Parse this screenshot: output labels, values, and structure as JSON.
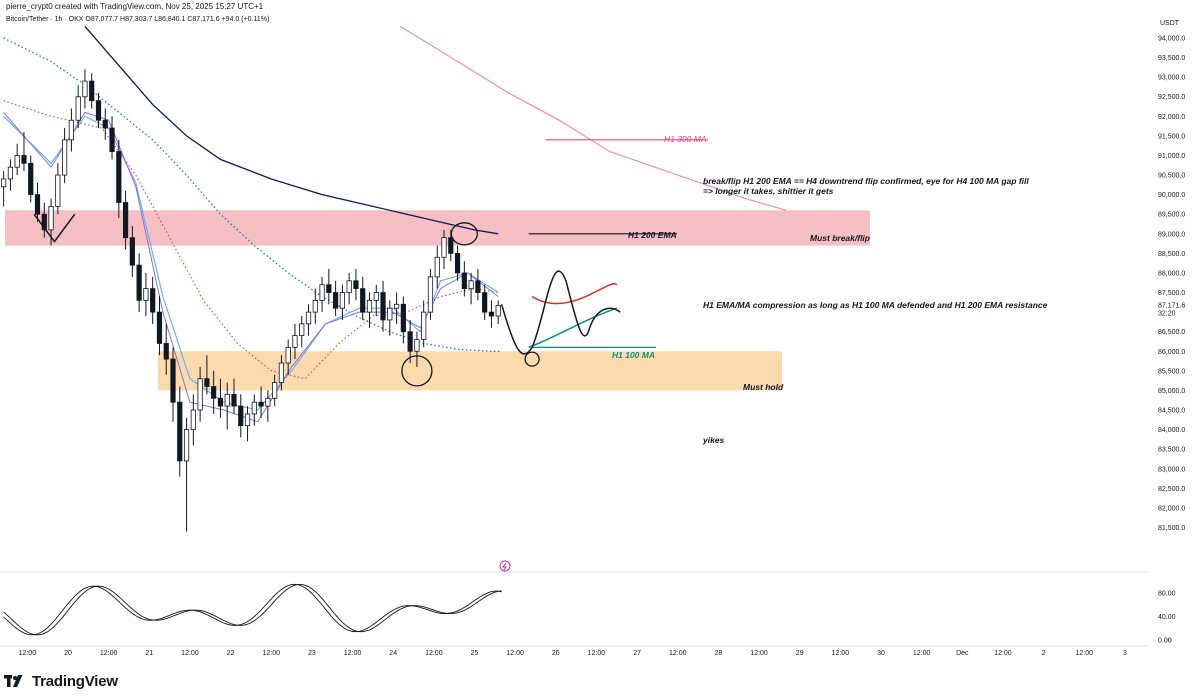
{
  "header": {
    "creator": "pierre_crypt0 created with TradingView.com, Nov 25, 2025 15:27 UTC+1",
    "symbol": "Bitcoin/Tether · 1h · OKX",
    "ohlc": "O87,077.7  H87,303.7  L86,840.1  C87,171.6  +94.0 (+0.11%)"
  },
  "currency": "USDT",
  "footer": {
    "brand": "TradingView"
  },
  "chart_data": {
    "type": "candlestick",
    "symbol": "Bitcoin/Tether",
    "timeframe": "1h",
    "exchange": "OKX",
    "price_axis": {
      "ticks": [
        94000,
        93500,
        93000,
        92500,
        92000,
        91500,
        91000,
        90500,
        90000,
        89500,
        89000,
        88500,
        88000,
        87500,
        87000,
        86500,
        86000,
        85500,
        85000,
        84500,
        84000,
        83500,
        83000,
        82500,
        82000,
        81500
      ],
      "tick_labels": [
        "94,000.0",
        "93,500.0",
        "93,000.0",
        "92,500.0",
        "92,000.0",
        "91,500.0",
        "91,000.0",
        "90,500.0",
        "90,000.0",
        "89,500.0",
        "89,000.0",
        "88,500.0",
        "88,000.0",
        "87,500.0",
        "87,000.0",
        "86,500.0",
        "86,000.0",
        "85,500.0",
        "85,000.0",
        "84,500.0",
        "84,000.0",
        "83,500.0",
        "83,000.0",
        "82,500.0",
        "82,000.0",
        "81,500.0"
      ],
      "range": [
        81300,
        94300
      ],
      "current_price": "87,171.6",
      "countdown": "32:20"
    },
    "time_axis": {
      "labels": [
        "12:00",
        "20",
        "12:00",
        "21",
        "12:00",
        "22",
        "12:00",
        "23",
        "12:00",
        "24",
        "12:00",
        "25",
        "12:00",
        "26",
        "12:00",
        "27",
        "12:00",
        "28",
        "12:00",
        "29",
        "12:00",
        "30",
        "12:00",
        "Dec",
        "12:00",
        "2",
        "12:00",
        "3"
      ],
      "label_hours": [
        -12,
        0,
        12,
        24,
        36,
        48,
        60,
        72,
        84,
        96,
        108,
        120,
        132,
        144,
        156,
        168,
        180,
        192,
        204,
        216,
        228,
        240,
        252,
        264,
        276,
        288,
        300,
        312
      ]
    },
    "candles": [
      [
        -19,
        90200,
        90600,
        89700,
        90400
      ],
      [
        -17,
        90400,
        90900,
        90100,
        90700
      ],
      [
        -15,
        90700,
        91300,
        90500,
        91000
      ],
      [
        -13,
        91000,
        91600,
        90600,
        90800
      ],
      [
        -11,
        90800,
        91000,
        89800,
        90000
      ],
      [
        -9,
        90000,
        90300,
        89300,
        89500
      ],
      [
        -7,
        89500,
        89800,
        88900,
        89100
      ],
      [
        -5,
        89100,
        89900,
        88700,
        89700
      ],
      [
        -3,
        89700,
        90800,
        89500,
        90500
      ],
      [
        -1,
        90500,
        91700,
        90300,
        91400
      ],
      [
        1,
        91400,
        92200,
        91100,
        91900
      ],
      [
        3,
        91900,
        92800,
        91700,
        92500
      ],
      [
        5,
        92500,
        93200,
        92200,
        92900
      ],
      [
        7,
        92900,
        93100,
        92200,
        92400
      ],
      [
        9,
        92400,
        92600,
        91700,
        91900
      ],
      [
        11,
        91900,
        92200,
        91400,
        91700
      ],
      [
        13,
        91700,
        92000,
        90900,
        91100
      ],
      [
        15,
        91100,
        91400,
        89400,
        89800
      ],
      [
        17,
        89800,
        90100,
        88600,
        88900
      ],
      [
        19,
        88900,
        89200,
        87900,
        88200
      ],
      [
        21,
        88200,
        88500,
        87000,
        87300
      ],
      [
        23,
        87300,
        88000,
        86900,
        87600
      ],
      [
        25,
        87600,
        87900,
        86700,
        87000
      ],
      [
        27,
        87000,
        87400,
        85900,
        86200
      ],
      [
        29,
        86200,
        86700,
        85400,
        85800
      ],
      [
        31,
        85800,
        86100,
        84200,
        84700
      ],
      [
        33,
        84700,
        85100,
        82800,
        83200
      ],
      [
        35,
        83200,
        84300,
        81400,
        84000
      ],
      [
        37,
        84000,
        84900,
        83600,
        84500
      ],
      [
        39,
        84500,
        85600,
        84200,
        85300
      ],
      [
        41,
        85300,
        85900,
        84900,
        85100
      ],
      [
        43,
        85100,
        85500,
        84400,
        84800
      ],
      [
        45,
        84800,
        85300,
        84300,
        84600
      ],
      [
        47,
        84600,
        85200,
        84000,
        84900
      ],
      [
        49,
        84900,
        85300,
        84400,
        84600
      ],
      [
        51,
        84600,
        84900,
        83800,
        84100
      ],
      [
        53,
        84100,
        84600,
        83700,
        84400
      ],
      [
        55,
        84400,
        84900,
        84100,
        84700
      ],
      [
        57,
        84700,
        85100,
        84300,
        84600
      ],
      [
        59,
        84600,
        85000,
        84200,
        84800
      ],
      [
        61,
        84800,
        85400,
        84600,
        85200
      ],
      [
        63,
        85200,
        85900,
        85000,
        85700
      ],
      [
        65,
        85700,
        86300,
        85400,
        86100
      ],
      [
        67,
        86100,
        86700,
        85800,
        86400
      ],
      [
        69,
        86400,
        86900,
        86100,
        86700
      ],
      [
        71,
        86700,
        87200,
        86400,
        87000
      ],
      [
        73,
        87000,
        87600,
        86700,
        87300
      ],
      [
        75,
        87300,
        87900,
        87000,
        87700
      ],
      [
        77,
        87700,
        88100,
        87200,
        87500
      ],
      [
        79,
        87500,
        87800,
        86900,
        87100
      ],
      [
        81,
        87100,
        87700,
        86800,
        87500
      ],
      [
        83,
        87500,
        88000,
        87200,
        87800
      ],
      [
        85,
        87800,
        88100,
        87300,
        87600
      ],
      [
        87,
        87600,
        87900,
        86800,
        87000
      ],
      [
        89,
        87000,
        87500,
        86600,
        87300
      ],
      [
        91,
        87300,
        87700,
        86900,
        87500
      ],
      [
        93,
        87500,
        87800,
        86500,
        86800
      ],
      [
        95,
        86800,
        87300,
        86400,
        87100
      ],
      [
        97,
        87100,
        87500,
        86700,
        87200
      ],
      [
        99,
        87200,
        87400,
        86200,
        86500
      ],
      [
        101,
        86500,
        86800,
        85700,
        86000
      ],
      [
        103,
        86000,
        86500,
        85600,
        86300
      ],
      [
        105,
        86300,
        87300,
        86100,
        87000
      ],
      [
        107,
        87000,
        88100,
        86800,
        87900
      ],
      [
        109,
        87900,
        88700,
        87600,
        88400
      ],
      [
        111,
        88400,
        89100,
        88100,
        88900
      ],
      [
        113,
        88900,
        89100,
        88300,
        88500
      ],
      [
        115,
        88500,
        88700,
        87800,
        88000
      ],
      [
        117,
        88000,
        88300,
        87400,
        87600
      ],
      [
        119,
        87600,
        88000,
        87200,
        87800
      ],
      [
        121,
        87800,
        88100,
        87300,
        87500
      ],
      [
        123,
        87500,
        87700,
        86800,
        87000
      ],
      [
        125,
        87000,
        87300,
        86600,
        86900
      ],
      [
        127,
        86900,
        87300,
        86700,
        87171.6
      ]
    ],
    "indicators": [
      {
        "name": "H1 200 EMA",
        "color": "#0c1a5c"
      },
      {
        "name": "H1 300 MA",
        "color": "#e0457b"
      },
      {
        "name": "H1 100 MA",
        "color": "#0d8f82"
      }
    ],
    "zones": [
      {
        "label": "Must break/flip",
        "from_price": 88700,
        "to_price": 89600,
        "color": "#f5b8bd"
      },
      {
        "label": "Must hold",
        "from_price": 85000,
        "to_price": 86000,
        "color": "#fbd7a4"
      }
    ],
    "annotations": [
      "break/flip H1 200 EMA == H4 downtrend flip confirmed, eye for H4 100 MA gap fill",
      "=> longer it takes, shittier it gets",
      "H1 EMA/MA compression as long as H1 100 MA defended and H1 200 EMA resistance",
      "yikes"
    ],
    "oscillator": {
      "ticks": [
        80,
        40,
        0
      ],
      "tick_labels": [
        "80.00",
        "40.00",
        "0.00"
      ],
      "range": [
        -8,
        100
      ]
    }
  }
}
